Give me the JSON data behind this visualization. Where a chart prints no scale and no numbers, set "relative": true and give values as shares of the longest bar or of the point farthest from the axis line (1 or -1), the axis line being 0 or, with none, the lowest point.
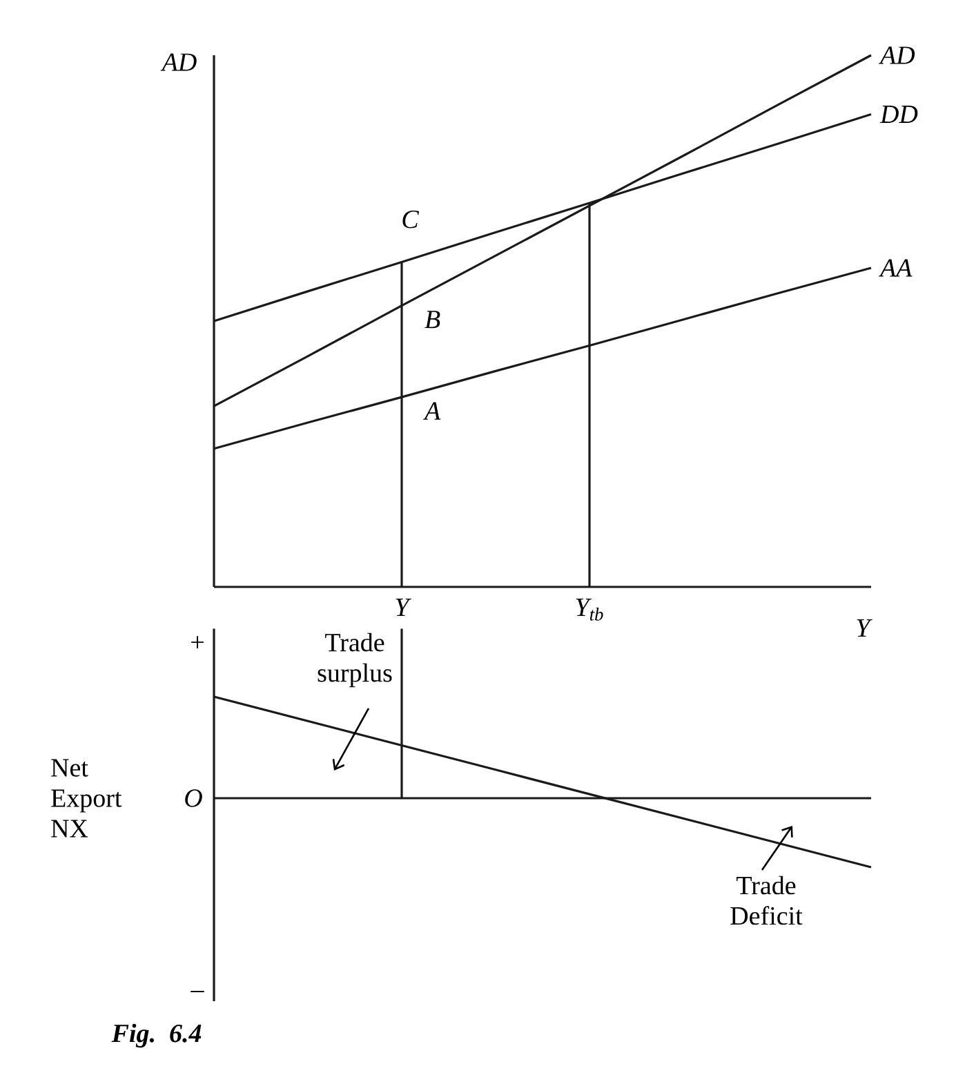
{
  "chart_data": [
    {
      "type": "line",
      "relative": true,
      "ylabel": "AD",
      "xlabel": "Y",
      "categories": [
        null,
        null,
        "Y",
        null,
        "Y$_{tb}$",
        null,
        null,
        null
      ],
      "series": [
        {
          "name": "AD",
          "color": "#1a1a1a",
          "values": [
            0.34,
            0.434,
            0.529,
            0.623,
            0.717,
            0.811,
            0.906,
            1.0
          ]
        },
        {
          "name": "DD",
          "color": "#1a1a1a",
          "values": [
            0.5,
            0.556,
            0.611,
            0.667,
            0.722,
            0.778,
            0.833,
            0.889
          ]
        },
        {
          "name": "AA",
          "color": "#1a1a1a",
          "values": [
            0.26,
            0.309,
            0.357,
            0.406,
            0.454,
            0.503,
            0.552,
            0.6
          ]
        }
      ],
      "ref_lines": [
        {
          "axis": "x",
          "value": "Y"
        },
        {
          "axis": "x",
          "value": "Y$_{tb}$"
        }
      ],
      "annotations": [
        {
          "text": "C",
          "x": "Y",
          "y": 0.611
        },
        {
          "text": "B",
          "x": "Y",
          "y": 0.529
        },
        {
          "text": "A",
          "x": "Y",
          "y": 0.357
        }
      ]
    },
    {
      "type": "line",
      "relative": true,
      "ylabel": "Net Export NX",
      "categories": [
        null,
        null,
        null,
        null,
        null,
        null,
        null,
        null
      ],
      "series": [
        {
          "color": "#1a1a1a",
          "values": [
            1.0,
            0.76,
            0.52,
            0.28,
            0.04,
            -0.2,
            -0.44,
            -0.68
          ]
        }
      ],
      "annotations": [
        "+",
        "O",
        "–",
        "Trade surplus",
        "Trade Deficit",
        "Fig. 6.4"
      ]
    }
  ]
}
